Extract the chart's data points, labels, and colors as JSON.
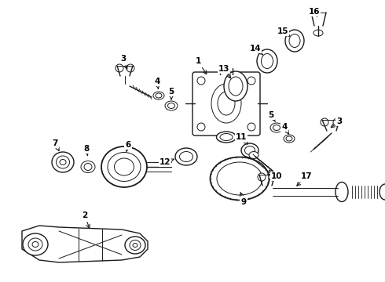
{
  "background_color": "#ffffff",
  "fig_width": 4.9,
  "fig_height": 3.6,
  "dpi": 100,
  "line_color": "#1a1a1a",
  "label_color": "#000000",
  "font_size": 7.5
}
